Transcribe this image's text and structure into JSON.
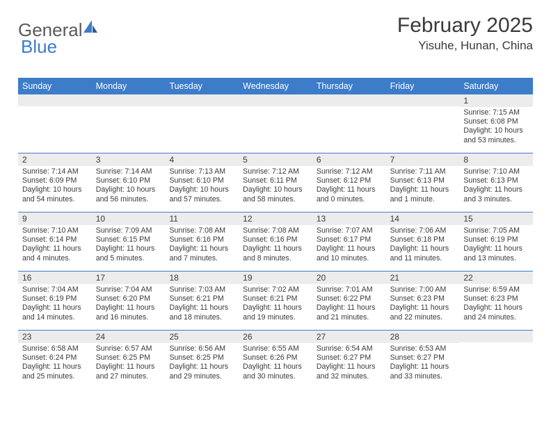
{
  "logo": {
    "text1": "General",
    "text2": "Blue"
  },
  "title": "February 2025",
  "location": "Yisuhe, Hunan, China",
  "brand_color": "#3d7cc9",
  "header_bg": "#3d7cc9",
  "stripe_bg": "#ececec",
  "text_color": "#3a3a3a",
  "days_of_week": [
    "Sunday",
    "Monday",
    "Tuesday",
    "Wednesday",
    "Thursday",
    "Friday",
    "Saturday"
  ],
  "weeks": [
    [
      {
        "n": "",
        "sr": "",
        "ss": "",
        "dl": ""
      },
      {
        "n": "",
        "sr": "",
        "ss": "",
        "dl": ""
      },
      {
        "n": "",
        "sr": "",
        "ss": "",
        "dl": ""
      },
      {
        "n": "",
        "sr": "",
        "ss": "",
        "dl": ""
      },
      {
        "n": "",
        "sr": "",
        "ss": "",
        "dl": ""
      },
      {
        "n": "",
        "sr": "",
        "ss": "",
        "dl": ""
      },
      {
        "n": "1",
        "sr": "Sunrise: 7:15 AM",
        "ss": "Sunset: 6:08 PM",
        "dl": "Daylight: 10 hours and 53 minutes."
      }
    ],
    [
      {
        "n": "2",
        "sr": "Sunrise: 7:14 AM",
        "ss": "Sunset: 6:09 PM",
        "dl": "Daylight: 10 hours and 54 minutes."
      },
      {
        "n": "3",
        "sr": "Sunrise: 7:14 AM",
        "ss": "Sunset: 6:10 PM",
        "dl": "Daylight: 10 hours and 56 minutes."
      },
      {
        "n": "4",
        "sr": "Sunrise: 7:13 AM",
        "ss": "Sunset: 6:10 PM",
        "dl": "Daylight: 10 hours and 57 minutes."
      },
      {
        "n": "5",
        "sr": "Sunrise: 7:12 AM",
        "ss": "Sunset: 6:11 PM",
        "dl": "Daylight: 10 hours and 58 minutes."
      },
      {
        "n": "6",
        "sr": "Sunrise: 7:12 AM",
        "ss": "Sunset: 6:12 PM",
        "dl": "Daylight: 11 hours and 0 minutes."
      },
      {
        "n": "7",
        "sr": "Sunrise: 7:11 AM",
        "ss": "Sunset: 6:13 PM",
        "dl": "Daylight: 11 hours and 1 minute."
      },
      {
        "n": "8",
        "sr": "Sunrise: 7:10 AM",
        "ss": "Sunset: 6:13 PM",
        "dl": "Daylight: 11 hours and 3 minutes."
      }
    ],
    [
      {
        "n": "9",
        "sr": "Sunrise: 7:10 AM",
        "ss": "Sunset: 6:14 PM",
        "dl": "Daylight: 11 hours and 4 minutes."
      },
      {
        "n": "10",
        "sr": "Sunrise: 7:09 AM",
        "ss": "Sunset: 6:15 PM",
        "dl": "Daylight: 11 hours and 5 minutes."
      },
      {
        "n": "11",
        "sr": "Sunrise: 7:08 AM",
        "ss": "Sunset: 6:16 PM",
        "dl": "Daylight: 11 hours and 7 minutes."
      },
      {
        "n": "12",
        "sr": "Sunrise: 7:08 AM",
        "ss": "Sunset: 6:16 PM",
        "dl": "Daylight: 11 hours and 8 minutes."
      },
      {
        "n": "13",
        "sr": "Sunrise: 7:07 AM",
        "ss": "Sunset: 6:17 PM",
        "dl": "Daylight: 11 hours and 10 minutes."
      },
      {
        "n": "14",
        "sr": "Sunrise: 7:06 AM",
        "ss": "Sunset: 6:18 PM",
        "dl": "Daylight: 11 hours and 11 minutes."
      },
      {
        "n": "15",
        "sr": "Sunrise: 7:05 AM",
        "ss": "Sunset: 6:19 PM",
        "dl": "Daylight: 11 hours and 13 minutes."
      }
    ],
    [
      {
        "n": "16",
        "sr": "Sunrise: 7:04 AM",
        "ss": "Sunset: 6:19 PM",
        "dl": "Daylight: 11 hours and 14 minutes."
      },
      {
        "n": "17",
        "sr": "Sunrise: 7:04 AM",
        "ss": "Sunset: 6:20 PM",
        "dl": "Daylight: 11 hours and 16 minutes."
      },
      {
        "n": "18",
        "sr": "Sunrise: 7:03 AM",
        "ss": "Sunset: 6:21 PM",
        "dl": "Daylight: 11 hours and 18 minutes."
      },
      {
        "n": "19",
        "sr": "Sunrise: 7:02 AM",
        "ss": "Sunset: 6:21 PM",
        "dl": "Daylight: 11 hours and 19 minutes."
      },
      {
        "n": "20",
        "sr": "Sunrise: 7:01 AM",
        "ss": "Sunset: 6:22 PM",
        "dl": "Daylight: 11 hours and 21 minutes."
      },
      {
        "n": "21",
        "sr": "Sunrise: 7:00 AM",
        "ss": "Sunset: 6:23 PM",
        "dl": "Daylight: 11 hours and 22 minutes."
      },
      {
        "n": "22",
        "sr": "Sunrise: 6:59 AM",
        "ss": "Sunset: 6:23 PM",
        "dl": "Daylight: 11 hours and 24 minutes."
      }
    ],
    [
      {
        "n": "23",
        "sr": "Sunrise: 6:58 AM",
        "ss": "Sunset: 6:24 PM",
        "dl": "Daylight: 11 hours and 25 minutes."
      },
      {
        "n": "24",
        "sr": "Sunrise: 6:57 AM",
        "ss": "Sunset: 6:25 PM",
        "dl": "Daylight: 11 hours and 27 minutes."
      },
      {
        "n": "25",
        "sr": "Sunrise: 6:56 AM",
        "ss": "Sunset: 6:25 PM",
        "dl": "Daylight: 11 hours and 29 minutes."
      },
      {
        "n": "26",
        "sr": "Sunrise: 6:55 AM",
        "ss": "Sunset: 6:26 PM",
        "dl": "Daylight: 11 hours and 30 minutes."
      },
      {
        "n": "27",
        "sr": "Sunrise: 6:54 AM",
        "ss": "Sunset: 6:27 PM",
        "dl": "Daylight: 11 hours and 32 minutes."
      },
      {
        "n": "28",
        "sr": "Sunrise: 6:53 AM",
        "ss": "Sunset: 6:27 PM",
        "dl": "Daylight: 11 hours and 33 minutes."
      },
      {
        "n": "",
        "sr": "",
        "ss": "",
        "dl": ""
      }
    ]
  ]
}
